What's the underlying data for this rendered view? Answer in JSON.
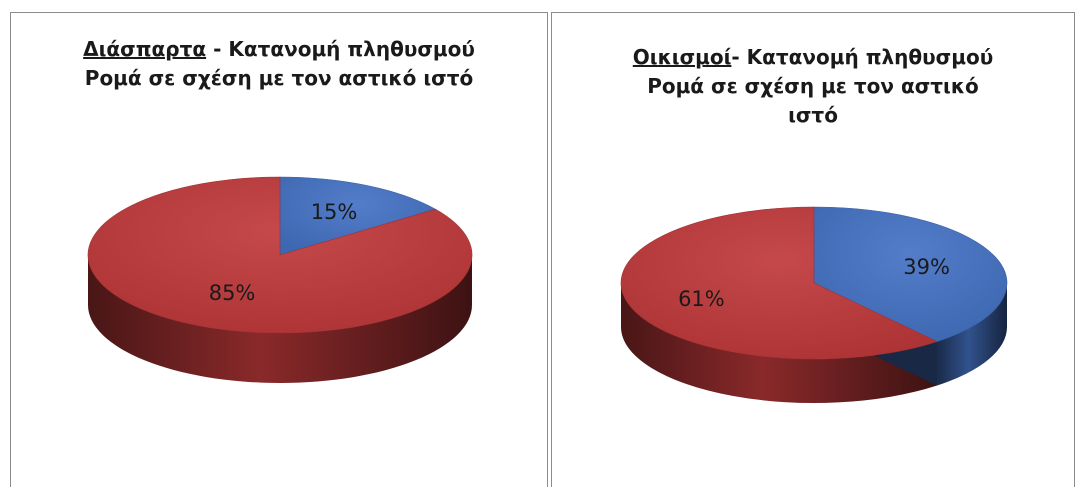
{
  "chart_data": [
    {
      "type": "pie",
      "title_highlight": "Διάσπαρτα",
      "title_rest": " - Κατανομή πληθυσμού",
      "title_line2": "Ρομά σε σχέση με τον αστικό ιστό",
      "slices": [
        {
          "label": "15%",
          "value": 15,
          "color": "#4472C4"
        },
        {
          "label": "85%",
          "value": 85,
          "color": "#C0393B"
        }
      ]
    },
    {
      "type": "pie",
      "title_highlight": "Οικισμοί",
      "title_rest": "- Κατανομή πληθυσμού",
      "title_line2": "Ρομά σε σχέση με τον αστικό ιστό",
      "slices": [
        {
          "label": "39%",
          "value": 39,
          "color": "#4472C4"
        },
        {
          "label": "61%",
          "value": 61,
          "color": "#C0393B"
        }
      ]
    }
  ]
}
